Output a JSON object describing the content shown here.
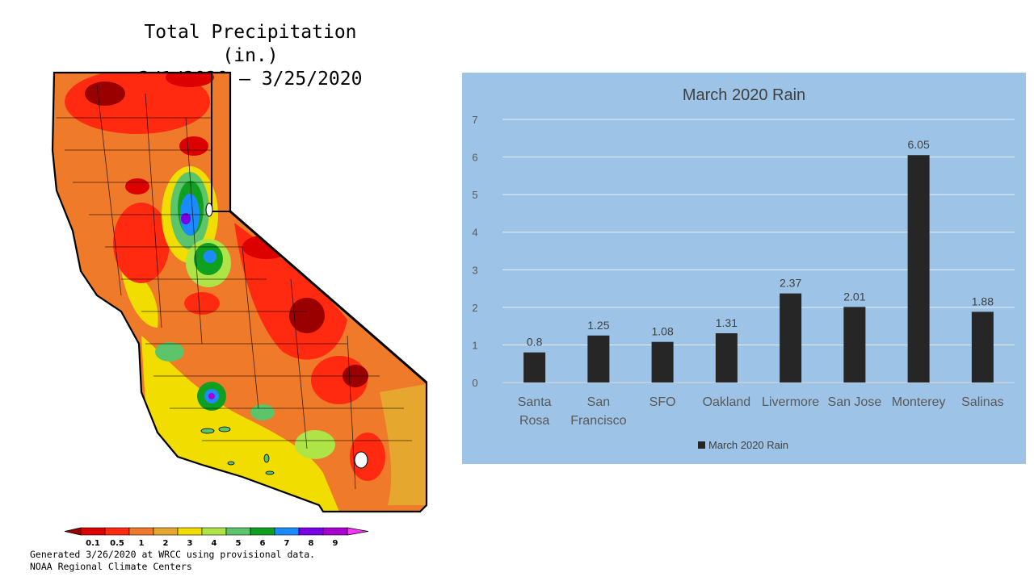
{
  "map_panel": {
    "title_line1": "Total Precipitation (in.)",
    "title_line2": "3/1/2020 – 3/25/2020",
    "legend_labels": [
      "0.1",
      "0.5",
      "1",
      "2",
      "3",
      "4",
      "5",
      "6",
      "7",
      "8",
      "9"
    ],
    "legend_colors": [
      "#9b0000",
      "#dd0000",
      "#ff2a10",
      "#ee7a2a",
      "#e6a72e",
      "#f2dd00",
      "#aee445",
      "#5cc46a",
      "#10a020",
      "#1a8cff",
      "#7a00e6",
      "#a800d0",
      "#ff33ff"
    ],
    "footer_line1": "Generated 3/26/2020 at WRCC using provisional data.",
    "footer_line2": "NOAA Regional Climate Centers"
  },
  "chart_data": {
    "type": "bar",
    "title": "March 2020 Rain",
    "categories": [
      "Santa Rosa",
      "San Francisco",
      "SFO",
      "Oakland",
      "Livermore",
      "San Jose",
      "Monterey",
      "Salinas"
    ],
    "category_label_lines": [
      [
        "Santa",
        "Rosa"
      ],
      [
        "San",
        "Francisco"
      ],
      [
        "SFO"
      ],
      [
        "Oakland"
      ],
      [
        "Livermore"
      ],
      [
        "San Jose"
      ],
      [
        "Monterey"
      ],
      [
        "Salinas"
      ]
    ],
    "series": [
      {
        "name": "March 2020 Rain",
        "values": [
          0.8,
          1.25,
          1.08,
          1.31,
          2.37,
          2.01,
          6.05,
          1.88
        ]
      }
    ],
    "data_labels": [
      "0.8",
      "1.25",
      "1.08",
      "1.31",
      "2.37",
      "2.01",
      "6.05",
      "1.88"
    ],
    "ylim": [
      0,
      7
    ],
    "yticks": [
      0,
      1,
      2,
      3,
      4,
      5,
      6,
      7
    ],
    "grid": true,
    "legend_position": "bottom",
    "bar_color": "#262626",
    "background_color": "#9dc3e6"
  }
}
